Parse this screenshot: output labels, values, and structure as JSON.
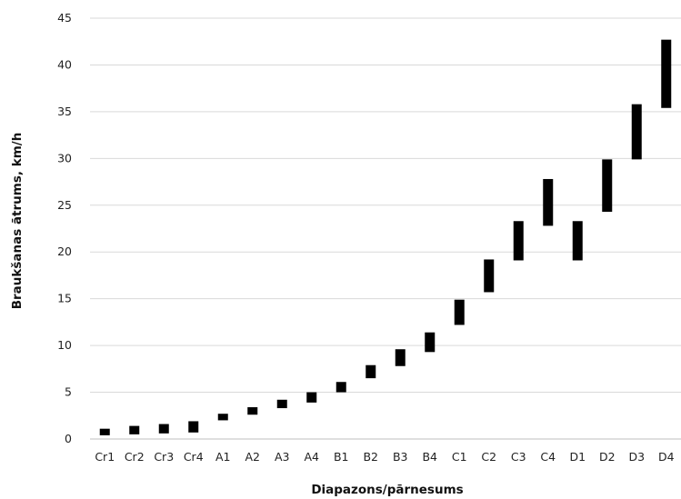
{
  "chart_data": {
    "type": "bar",
    "subtype": "floating-range",
    "title": "",
    "xlabel": "Diapazons/pārnesums",
    "ylabel": "Braukšanas ātrums, km/h",
    "ylim": [
      0,
      45
    ],
    "yticks": [
      0,
      5,
      10,
      15,
      20,
      25,
      30,
      35,
      40,
      45
    ],
    "grid": "horizontal",
    "legend": "none",
    "bar_color": "#000000",
    "gridline_color": "#d9d9d9",
    "categories": [
      "Cr1",
      "Cr2",
      "Cr3",
      "Cr4",
      "A1",
      "A2",
      "A3",
      "A4",
      "B1",
      "B2",
      "B3",
      "B4",
      "C1",
      "C2",
      "C3",
      "C4",
      "D1",
      "D2",
      "D3",
      "D4"
    ],
    "low": [
      0.4,
      0.5,
      0.6,
      0.7,
      2.0,
      2.6,
      3.3,
      3.9,
      5.0,
      6.5,
      7.8,
      9.3,
      12.2,
      15.7,
      19.1,
      22.8,
      19.1,
      24.3,
      29.9,
      35.4
    ],
    "high": [
      1.1,
      1.4,
      1.6,
      1.9,
      2.7,
      3.4,
      4.2,
      5.0,
      6.1,
      7.9,
      9.6,
      11.4,
      14.9,
      19.2,
      23.3,
      27.8,
      23.3,
      29.9,
      35.8,
      42.7
    ]
  }
}
